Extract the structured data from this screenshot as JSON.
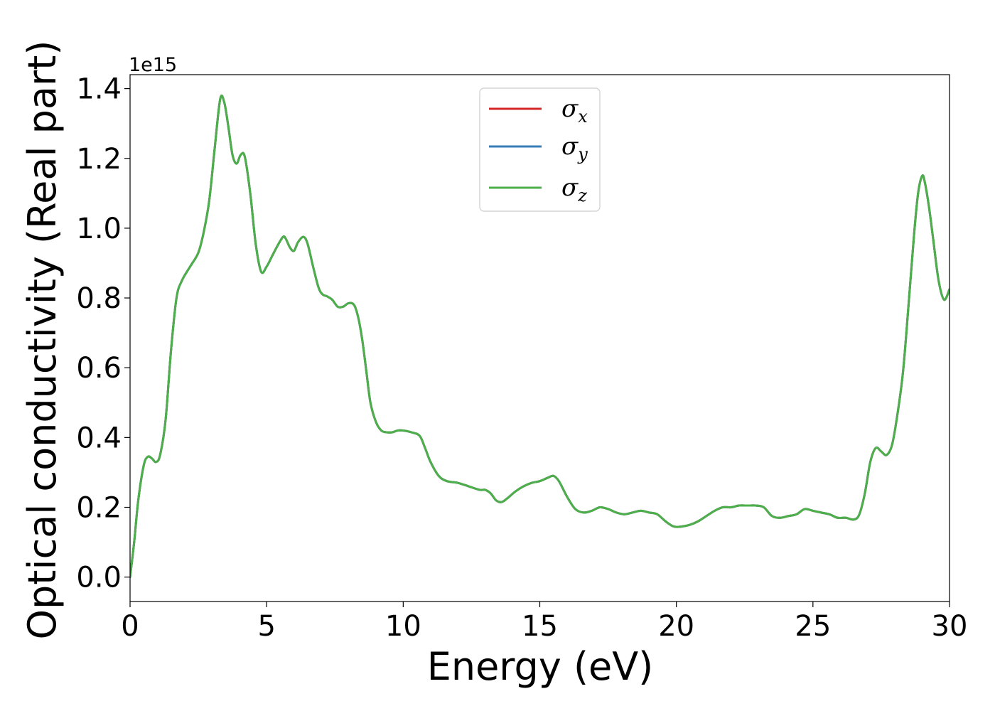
{
  "chart_data": {
    "type": "line",
    "title": "",
    "xlabel": "Energy (eV)",
    "ylabel": "Optical conductivity (Real part)",
    "offset_label": "1e15",
    "xlim": [
      0,
      30
    ],
    "ylim": [
      -0.07,
      1.44
    ],
    "x_ticks": [
      0,
      5,
      10,
      15,
      20,
      25,
      30
    ],
    "x_tick_labels": [
      "0",
      "5",
      "10",
      "15",
      "20",
      "25",
      "30"
    ],
    "y_ticks": [
      0.0,
      0.2,
      0.4,
      0.6,
      0.8,
      1.0,
      1.2,
      1.4
    ],
    "y_tick_labels": [
      "0.0",
      "0.2",
      "0.4",
      "0.6",
      "0.8",
      "1.0",
      "1.2",
      "1.4"
    ],
    "grid": false,
    "legend_position": "top-center",
    "legend": [
      {
        "symbol": "σ",
        "sub": "x",
        "color": "#d62728"
      },
      {
        "symbol": "σ",
        "sub": "y",
        "color": "#377eb8"
      },
      {
        "symbol": "σ",
        "sub": "z",
        "color": "#4daf4a"
      }
    ],
    "x": [
      0,
      0.15,
      0.3,
      0.5,
      0.65,
      0.8,
      0.95,
      1.1,
      1.3,
      1.5,
      1.7,
      1.9,
      2.2,
      2.5,
      2.7,
      2.9,
      3.1,
      3.3,
      3.45,
      3.6,
      3.75,
      3.9,
      4.05,
      4.2,
      4.4,
      4.6,
      4.8,
      5.0,
      5.2,
      5.4,
      5.6,
      5.7,
      5.85,
      6.0,
      6.15,
      6.35,
      6.5,
      6.7,
      6.9,
      7.05,
      7.2,
      7.4,
      7.6,
      7.8,
      8.0,
      8.2,
      8.35,
      8.5,
      8.65,
      8.8,
      9.0,
      9.2,
      9.4,
      9.6,
      9.8,
      10.0,
      10.3,
      10.6,
      10.8,
      11.0,
      11.3,
      11.6,
      12.0,
      12.4,
      12.8,
      13.0,
      13.2,
      13.4,
      13.6,
      13.8,
      14.1,
      14.4,
      14.7,
      15.0,
      15.3,
      15.5,
      15.7,
      16.0,
      16.3,
      16.6,
      16.9,
      17.2,
      17.5,
      17.8,
      18.1,
      18.4,
      18.7,
      19.0,
      19.3,
      19.6,
      19.9,
      20.2,
      20.5,
      20.8,
      21.1,
      21.4,
      21.7,
      22.0,
      22.3,
      22.6,
      22.9,
      23.2,
      23.5,
      23.8,
      24.1,
      24.4,
      24.7,
      25.0,
      25.3,
      25.6,
      25.9,
      26.2,
      26.5,
      26.7,
      26.9,
      27.1,
      27.3,
      27.5,
      27.7,
      27.9,
      28.1,
      28.3,
      28.5,
      28.7,
      28.85,
      29.0,
      29.1,
      29.25,
      29.4,
      29.6,
      29.8,
      30.0
    ],
    "series": [
      {
        "name": "σx",
        "color": "#d62728",
        "values": [
          0.0,
          0.1,
          0.22,
          0.32,
          0.345,
          0.34,
          0.33,
          0.35,
          0.45,
          0.65,
          0.8,
          0.85,
          0.89,
          0.93,
          0.99,
          1.08,
          1.23,
          1.37,
          1.36,
          1.29,
          1.21,
          1.185,
          1.21,
          1.205,
          1.1,
          0.955,
          0.875,
          0.89,
          0.92,
          0.95,
          0.975,
          0.97,
          0.945,
          0.935,
          0.96,
          0.975,
          0.955,
          0.89,
          0.83,
          0.81,
          0.805,
          0.795,
          0.775,
          0.775,
          0.785,
          0.78,
          0.745,
          0.68,
          0.59,
          0.5,
          0.445,
          0.42,
          0.415,
          0.415,
          0.42,
          0.42,
          0.415,
          0.405,
          0.37,
          0.33,
          0.29,
          0.275,
          0.27,
          0.26,
          0.25,
          0.25,
          0.24,
          0.22,
          0.215,
          0.225,
          0.245,
          0.26,
          0.27,
          0.275,
          0.285,
          0.29,
          0.275,
          0.23,
          0.195,
          0.185,
          0.19,
          0.2,
          0.195,
          0.185,
          0.18,
          0.185,
          0.19,
          0.185,
          0.18,
          0.16,
          0.145,
          0.145,
          0.15,
          0.16,
          0.175,
          0.19,
          0.2,
          0.2,
          0.205,
          0.205,
          0.205,
          0.2,
          0.175,
          0.17,
          0.175,
          0.18,
          0.195,
          0.19,
          0.185,
          0.18,
          0.17,
          0.17,
          0.165,
          0.18,
          0.24,
          0.33,
          0.37,
          0.36,
          0.35,
          0.38,
          0.47,
          0.59,
          0.78,
          0.98,
          1.1,
          1.15,
          1.13,
          1.06,
          0.97,
          0.85,
          0.795,
          0.825
        ]
      },
      {
        "name": "σy",
        "color": "#377eb8",
        "values": [
          0.0,
          0.1,
          0.22,
          0.32,
          0.345,
          0.34,
          0.33,
          0.35,
          0.45,
          0.65,
          0.8,
          0.85,
          0.89,
          0.93,
          0.99,
          1.08,
          1.23,
          1.37,
          1.36,
          1.29,
          1.21,
          1.185,
          1.21,
          1.205,
          1.1,
          0.955,
          0.875,
          0.89,
          0.92,
          0.95,
          0.975,
          0.97,
          0.945,
          0.935,
          0.96,
          0.975,
          0.955,
          0.89,
          0.83,
          0.81,
          0.805,
          0.795,
          0.775,
          0.775,
          0.785,
          0.78,
          0.745,
          0.68,
          0.59,
          0.5,
          0.445,
          0.42,
          0.415,
          0.415,
          0.42,
          0.42,
          0.415,
          0.405,
          0.37,
          0.33,
          0.29,
          0.275,
          0.27,
          0.26,
          0.25,
          0.25,
          0.24,
          0.22,
          0.215,
          0.225,
          0.245,
          0.26,
          0.27,
          0.275,
          0.285,
          0.29,
          0.275,
          0.23,
          0.195,
          0.185,
          0.19,
          0.2,
          0.195,
          0.185,
          0.18,
          0.185,
          0.19,
          0.185,
          0.18,
          0.16,
          0.145,
          0.145,
          0.15,
          0.16,
          0.175,
          0.19,
          0.2,
          0.2,
          0.205,
          0.205,
          0.205,
          0.2,
          0.175,
          0.17,
          0.175,
          0.18,
          0.195,
          0.19,
          0.185,
          0.18,
          0.17,
          0.17,
          0.165,
          0.18,
          0.24,
          0.33,
          0.37,
          0.36,
          0.35,
          0.38,
          0.47,
          0.59,
          0.78,
          0.98,
          1.1,
          1.15,
          1.13,
          1.06,
          0.97,
          0.85,
          0.795,
          0.825
        ]
      },
      {
        "name": "σz",
        "color": "#4daf4a",
        "values": [
          0.0,
          0.1,
          0.22,
          0.32,
          0.345,
          0.34,
          0.33,
          0.35,
          0.45,
          0.65,
          0.8,
          0.85,
          0.89,
          0.93,
          0.99,
          1.08,
          1.23,
          1.37,
          1.36,
          1.29,
          1.21,
          1.185,
          1.21,
          1.205,
          1.1,
          0.955,
          0.875,
          0.89,
          0.92,
          0.95,
          0.975,
          0.97,
          0.945,
          0.935,
          0.96,
          0.975,
          0.955,
          0.89,
          0.83,
          0.81,
          0.805,
          0.795,
          0.775,
          0.775,
          0.785,
          0.78,
          0.745,
          0.68,
          0.59,
          0.5,
          0.445,
          0.42,
          0.415,
          0.415,
          0.42,
          0.42,
          0.415,
          0.405,
          0.37,
          0.33,
          0.29,
          0.275,
          0.27,
          0.26,
          0.25,
          0.25,
          0.24,
          0.22,
          0.215,
          0.225,
          0.245,
          0.26,
          0.27,
          0.275,
          0.285,
          0.29,
          0.275,
          0.23,
          0.195,
          0.185,
          0.19,
          0.2,
          0.195,
          0.185,
          0.18,
          0.185,
          0.19,
          0.185,
          0.18,
          0.16,
          0.145,
          0.145,
          0.15,
          0.16,
          0.175,
          0.19,
          0.2,
          0.2,
          0.205,
          0.205,
          0.205,
          0.2,
          0.175,
          0.17,
          0.175,
          0.18,
          0.195,
          0.19,
          0.185,
          0.18,
          0.17,
          0.17,
          0.165,
          0.18,
          0.24,
          0.33,
          0.37,
          0.36,
          0.35,
          0.38,
          0.47,
          0.59,
          0.78,
          0.98,
          1.1,
          1.15,
          1.13,
          1.06,
          0.97,
          0.85,
          0.795,
          0.825
        ]
      }
    ]
  }
}
